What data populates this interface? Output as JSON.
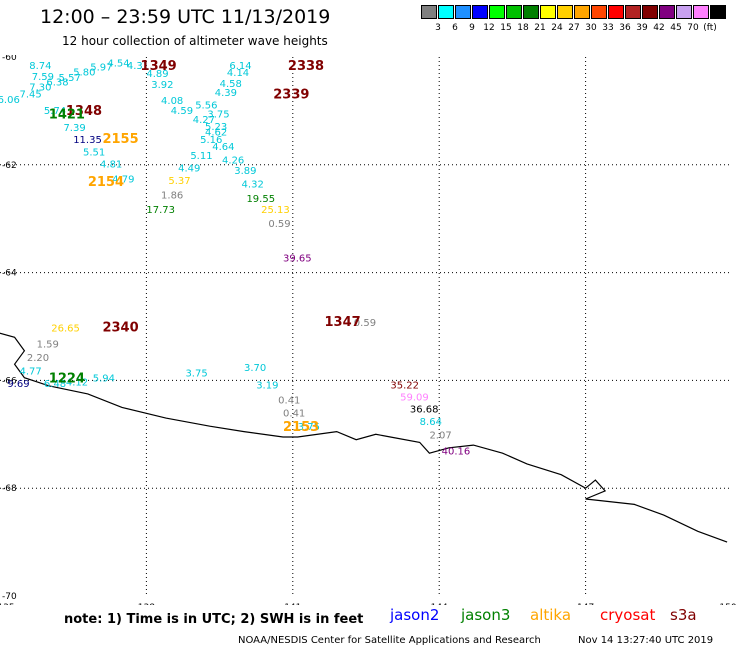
{
  "header": {
    "title": "12:00 – 23:59 UTC 11/13/2019",
    "subtitle": "12 hour collection of altimeter wave heights",
    "colorbar": {
      "colors": [
        "#808080",
        "#00ffff",
        "#1e90ff",
        "#0000ff",
        "#00ff00",
        "#00c000",
        "#008000",
        "#ffff00",
        "#ffd000",
        "#ffa500",
        "#ff4500",
        "#ff0000",
        "#b22222",
        "#800000",
        "#800080",
        "#c8a0f0",
        "#ff80ff",
        "#000000"
      ],
      "labels": [
        "3",
        "6",
        "9",
        "12",
        "15",
        "18",
        "21",
        "24",
        "27",
        "30",
        "33",
        "36",
        "39",
        "42",
        "45",
        "70",
        "(ft)"
      ]
    }
  },
  "chart_data": {
    "type": "map",
    "title": "12:00 – 23:59 UTC 11/13/2019",
    "subtitle": "12 hour collection of altimeter wave heights",
    "lon_range": [
      135,
      150
    ],
    "lat_range": [
      -70,
      -60
    ],
    "lon_ticks": [
      "135",
      "138",
      "141",
      "144",
      "147",
      "150"
    ],
    "lat_ticks": [
      "-60",
      "-62",
      "-64",
      "-66",
      "-68",
      "-70"
    ],
    "grid": true,
    "coastline": [
      [
        134.9,
        -65.1
      ],
      [
        135.3,
        -65.2
      ],
      [
        135.5,
        -65.45
      ],
      [
        135.3,
        -65.7
      ],
      [
        135.5,
        -65.95
      ],
      [
        136.0,
        -66.1
      ],
      [
        136.8,
        -66.25
      ],
      [
        137.5,
        -66.5
      ],
      [
        138.4,
        -66.7
      ],
      [
        139.3,
        -66.85
      ],
      [
        140.0,
        -66.95
      ],
      [
        140.8,
        -67.05
      ],
      [
        141.1,
        -67.05
      ],
      [
        141.9,
        -66.95
      ],
      [
        142.3,
        -67.1
      ],
      [
        142.7,
        -67.0
      ],
      [
        143.0,
        -67.05
      ],
      [
        143.6,
        -67.15
      ],
      [
        143.8,
        -67.35
      ],
      [
        144.2,
        -67.25
      ],
      [
        144.7,
        -67.2
      ],
      [
        145.3,
        -67.35
      ],
      [
        145.8,
        -67.55
      ],
      [
        146.5,
        -67.75
      ],
      [
        147.0,
        -68.0
      ],
      [
        147.2,
        -67.85
      ],
      [
        147.4,
        -68.05
      ],
      [
        147.0,
        -68.2
      ],
      [
        148.0,
        -68.3
      ],
      [
        148.6,
        -68.5
      ],
      [
        149.3,
        -68.8
      ],
      [
        149.9,
        -69.0
      ]
    ],
    "time_labels": [
      {
        "text": "1349",
        "lon": 137.88,
        "lat": -60.15,
        "color": "#800000"
      },
      {
        "text": "2338",
        "lon": 140.9,
        "lat": -60.15,
        "color": "#800000"
      },
      {
        "text": "2339",
        "lon": 140.6,
        "lat": -60.68,
        "color": "#800000"
      },
      {
        "text": "1348",
        "lon": 136.35,
        "lat": -60.98,
        "color": "#800000"
      },
      {
        "text": "1421",
        "lon": 136.0,
        "lat": -61.05,
        "color": "#008000"
      },
      {
        "text": "2155",
        "lon": 137.1,
        "lat": -61.5,
        "color": "#ffa500"
      },
      {
        "text": "2154",
        "lon": 136.8,
        "lat": -62.3,
        "color": "#ffa500"
      },
      {
        "text": "2340",
        "lon": 137.1,
        "lat": -65.0,
        "color": "#800000"
      },
      {
        "text": "1347",
        "lon": 141.65,
        "lat": -64.9,
        "color": "#800000"
      },
      {
        "text": "1224",
        "lon": 136.0,
        "lat": -65.95,
        "color": "#008000"
      },
      {
        "text": "2153",
        "lon": 140.8,
        "lat": -66.85,
        "color": "#ffa500"
      }
    ],
    "points": [
      {
        "text": "8.74",
        "lon": 135.6,
        "lat": -60.15,
        "color": "#00c8d8"
      },
      {
        "text": "4.54",
        "lon": 137.2,
        "lat": -60.1,
        "color": "#00c8d8"
      },
      {
        "text": "5.97",
        "lon": 136.85,
        "lat": -60.18,
        "color": "#00c8d8"
      },
      {
        "text": "4.31",
        "lon": 137.6,
        "lat": -60.15,
        "color": "#00c8d8"
      },
      {
        "text": "6.14",
        "lon": 139.7,
        "lat": -60.15,
        "color": "#00c8d8"
      },
      {
        "text": "5.80",
        "lon": 136.5,
        "lat": -60.27,
        "color": "#00c8d8"
      },
      {
        "text": "7.59",
        "lon": 135.65,
        "lat": -60.35,
        "color": "#00c8d8"
      },
      {
        "text": "5.57",
        "lon": 136.2,
        "lat": -60.37,
        "color": "#00c8d8"
      },
      {
        "text": "4.89",
        "lon": 138.0,
        "lat": -60.3,
        "color": "#00c8d8"
      },
      {
        "text": "4.14",
        "lon": 139.65,
        "lat": -60.28,
        "color": "#00c8d8"
      },
      {
        "text": "6.38",
        "lon": 135.95,
        "lat": -60.45,
        "color": "#00c8d8"
      },
      {
        "text": "4.58",
        "lon": 139.5,
        "lat": -60.48,
        "color": "#00c8d8"
      },
      {
        "text": "7.30",
        "lon": 135.6,
        "lat": -60.55,
        "color": "#00c8d8"
      },
      {
        "text": "3.92",
        "lon": 138.1,
        "lat": -60.5,
        "color": "#00c8d8"
      },
      {
        "text": "7.45",
        "lon": 135.4,
        "lat": -60.68,
        "color": "#00c8d8"
      },
      {
        "text": "4.39",
        "lon": 139.4,
        "lat": -60.65,
        "color": "#00c8d8"
      },
      {
        "text": "6.06",
        "lon": 134.95,
        "lat": -60.78,
        "color": "#00c8d8"
      },
      {
        "text": "4.08",
        "lon": 138.3,
        "lat": -60.8,
        "color": "#00c8d8"
      },
      {
        "text": "5.56",
        "lon": 139.0,
        "lat": -60.88,
        "color": "#00c8d8"
      },
      {
        "text": "5.74",
        "lon": 135.9,
        "lat": -60.98,
        "color": "#00c8d8"
      },
      {
        "text": "4.59",
        "lon": 138.5,
        "lat": -60.98,
        "color": "#00c8d8"
      },
      {
        "text": "3.75",
        "lon": 139.25,
        "lat": -61.05,
        "color": "#00c8d8"
      },
      {
        "text": "4.27",
        "lon": 138.95,
        "lat": -61.15,
        "color": "#00c8d8"
      },
      {
        "text": "7.39",
        "lon": 136.3,
        "lat": -61.3,
        "color": "#00c8d8"
      },
      {
        "text": "5.23",
        "lon": 139.2,
        "lat": -61.28,
        "color": "#00c8d8"
      },
      {
        "text": "4.62",
        "lon": 139.2,
        "lat": -61.38,
        "color": "#00c8d8"
      },
      {
        "text": "11.35",
        "lon": 136.5,
        "lat": -61.52,
        "color": "#000080"
      },
      {
        "text": "5.16",
        "lon": 139.1,
        "lat": -61.52,
        "color": "#00c8d8"
      },
      {
        "text": "4.64",
        "lon": 139.35,
        "lat": -61.65,
        "color": "#00c8d8"
      },
      {
        "text": "5.51",
        "lon": 136.7,
        "lat": -61.75,
        "color": "#00c8d8"
      },
      {
        "text": "5.11",
        "lon": 138.9,
        "lat": -61.82,
        "color": "#00c8d8"
      },
      {
        "text": "4.26",
        "lon": 139.55,
        "lat": -61.9,
        "color": "#00c8d8"
      },
      {
        "text": "4.81",
        "lon": 137.05,
        "lat": -61.98,
        "color": "#00c8d8"
      },
      {
        "text": "4.49",
        "lon": 138.65,
        "lat": -62.05,
        "color": "#00c8d8"
      },
      {
        "text": "3.89",
        "lon": 139.8,
        "lat": -62.1,
        "color": "#00c8d8"
      },
      {
        "text": "4.79",
        "lon": 137.3,
        "lat": -62.25,
        "color": "#00c8d8"
      },
      {
        "text": "5.37",
        "lon": 138.45,
        "lat": -62.28,
        "color": "#ffd000"
      },
      {
        "text": "4.32",
        "lon": 139.95,
        "lat": -62.35,
        "color": "#00c8d8"
      },
      {
        "text": "1.86",
        "lon": 138.3,
        "lat": -62.55,
        "color": "#808080"
      },
      {
        "text": "19.55",
        "lon": 140.05,
        "lat": -62.62,
        "color": "#008000"
      },
      {
        "text": "17.73",
        "lon": 138.0,
        "lat": -62.82,
        "color": "#008000"
      },
      {
        "text": "25.13",
        "lon": 140.35,
        "lat": -62.82,
        "color": "#ffd000"
      },
      {
        "text": "0.59",
        "lon": 140.5,
        "lat": -63.08,
        "color": "#808080"
      },
      {
        "text": "39.65",
        "lon": 140.8,
        "lat": -63.72,
        "color": "#800080"
      },
      {
        "text": "0.59",
        "lon": 142.25,
        "lat": -64.92,
        "color": "#808080"
      },
      {
        "text": "26.65",
        "lon": 136.05,
        "lat": -65.02,
        "color": "#ffd000"
      },
      {
        "text": "1.59",
        "lon": 135.75,
        "lat": -65.32,
        "color": "#808080"
      },
      {
        "text": "2.20",
        "lon": 135.55,
        "lat": -65.57,
        "color": "#808080"
      },
      {
        "text": "4.77",
        "lon": 135.4,
        "lat": -65.82,
        "color": "#00c8d8"
      },
      {
        "text": "3.75",
        "lon": 138.8,
        "lat": -65.85,
        "color": "#00c8d8"
      },
      {
        "text": "3.70",
        "lon": 140.0,
        "lat": -65.75,
        "color": "#00c8d8"
      },
      {
        "text": "5.94",
        "lon": 136.9,
        "lat": -65.95,
        "color": "#00c8d8"
      },
      {
        "text": "4.12",
        "lon": 136.35,
        "lat": -66.02,
        "color": "#00c8d8"
      },
      {
        "text": "6.48",
        "lon": 135.9,
        "lat": -66.05,
        "color": "#00c8d8"
      },
      {
        "text": "9.69",
        "lon": 135.15,
        "lat": -66.05,
        "color": "#000080"
      },
      {
        "text": "3.19",
        "lon": 140.25,
        "lat": -66.08,
        "color": "#00c8d8"
      },
      {
        "text": "35.22",
        "lon": 143.0,
        "lat": -66.08,
        "color": "#800000"
      },
      {
        "text": "59.09",
        "lon": 143.2,
        "lat": -66.3,
        "color": "#ff80ff"
      },
      {
        "text": "0.41",
        "lon": 140.7,
        "lat": -66.35,
        "color": "#808080"
      },
      {
        "text": "36.68",
        "lon": 143.4,
        "lat": -66.52,
        "color": "#000000"
      },
      {
        "text": "0.41",
        "lon": 140.8,
        "lat": -66.6,
        "color": "#808080"
      },
      {
        "text": "8.64",
        "lon": 143.6,
        "lat": -66.75,
        "color": "#00c8d8"
      },
      {
        "text": "3.75",
        "lon": 141.1,
        "lat": -66.85,
        "color": "#00c8d8"
      },
      {
        "text": "2.07",
        "lon": 143.8,
        "lat": -67.0,
        "color": "#808080"
      },
      {
        "text": "40.16",
        "lon": 144.05,
        "lat": -67.3,
        "color": "#800080"
      }
    ]
  },
  "footer": {
    "note": "note:  1) Time is in UTC;  2) SWH is in feet",
    "satellites": [
      {
        "label": "jason2",
        "color": "#0000ff"
      },
      {
        "label": "jason3",
        "color": "#008000"
      },
      {
        "label": "altika",
        "color": "#ffa500"
      },
      {
        "label": "cryosat",
        "color": "#ff0000"
      },
      {
        "label": "s3a",
        "color": "#800000"
      }
    ],
    "credit": "NOAA/NESDIS Center for Satellite Applications and Research",
    "timestamp": "Nov 14 13:27:40 UTC 2019"
  }
}
